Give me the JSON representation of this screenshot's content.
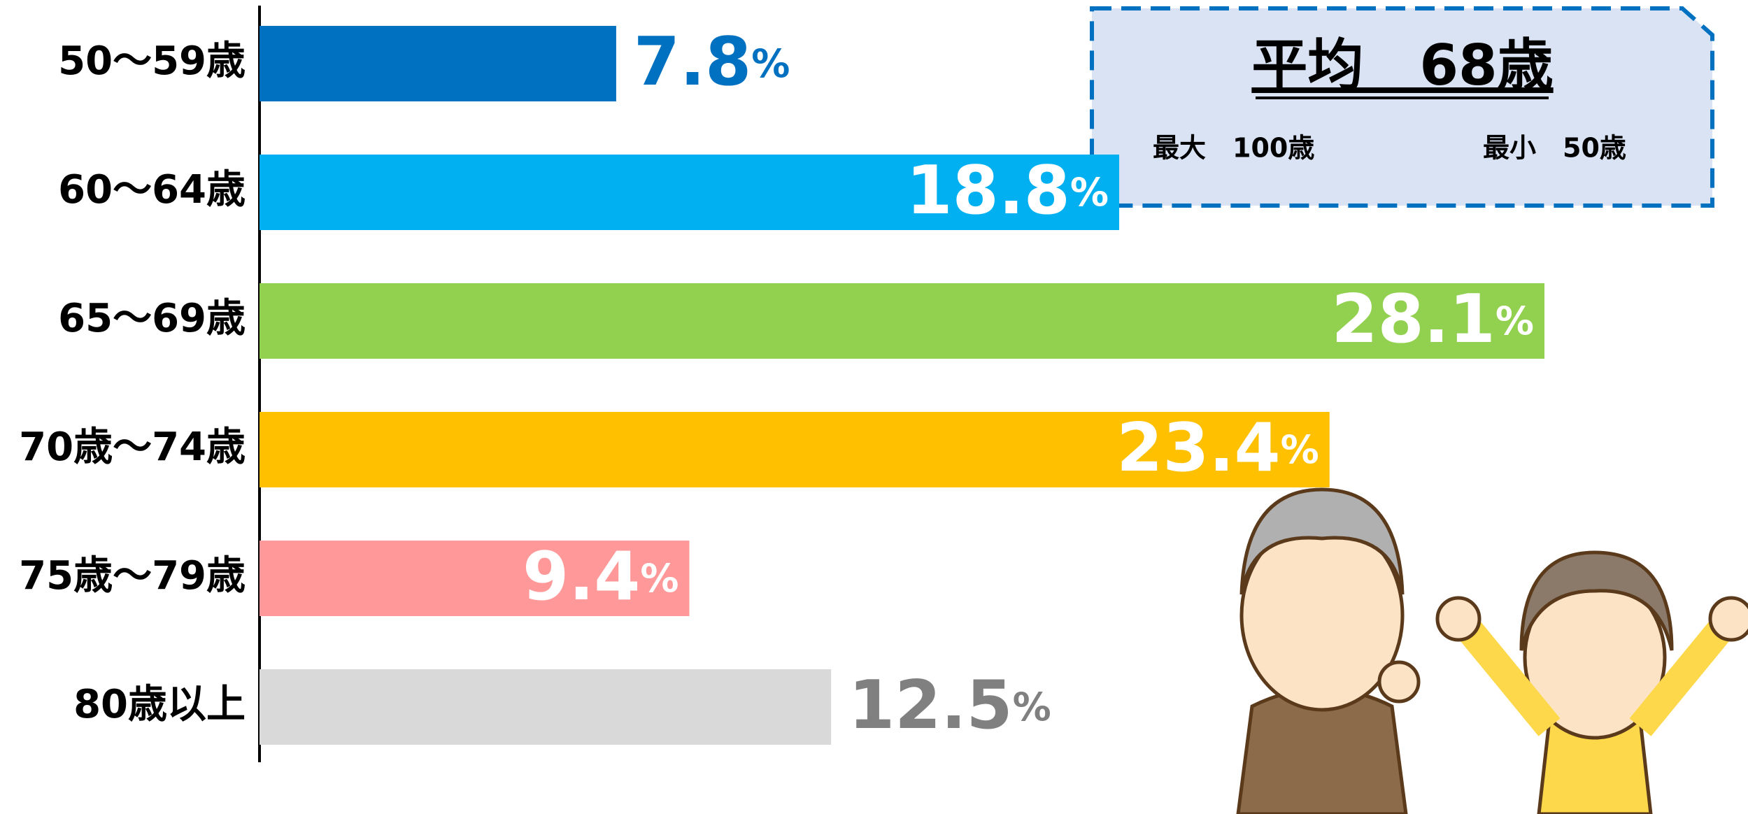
{
  "chart_data": {
    "type": "bar",
    "orientation": "horizontal",
    "categories": [
      "50～59歳",
      "60～64歳",
      "65～69歳",
      "70歳～74歳",
      "75歳～79歳",
      "80歳以上"
    ],
    "values": [
      7.8,
      18.8,
      28.1,
      23.4,
      9.4,
      12.5
    ],
    "value_labels": [
      "7.8%",
      "18.8%",
      "28.1%",
      "23.4%",
      "9.4%",
      "12.5%"
    ],
    "colors": [
      "#0070c0",
      "#00b0f0",
      "#92d050",
      "#ffc000",
      "#ff9999",
      "#d9d9d9"
    ],
    "label_colors": [
      "#0070c0",
      "#ffffff",
      "#ffffff",
      "#ffffff",
      "#ffffff",
      "#808080"
    ],
    "summary": {
      "average": "平均　68歳",
      "max": "最大　100歳",
      "min": "最小　50歳"
    }
  }
}
